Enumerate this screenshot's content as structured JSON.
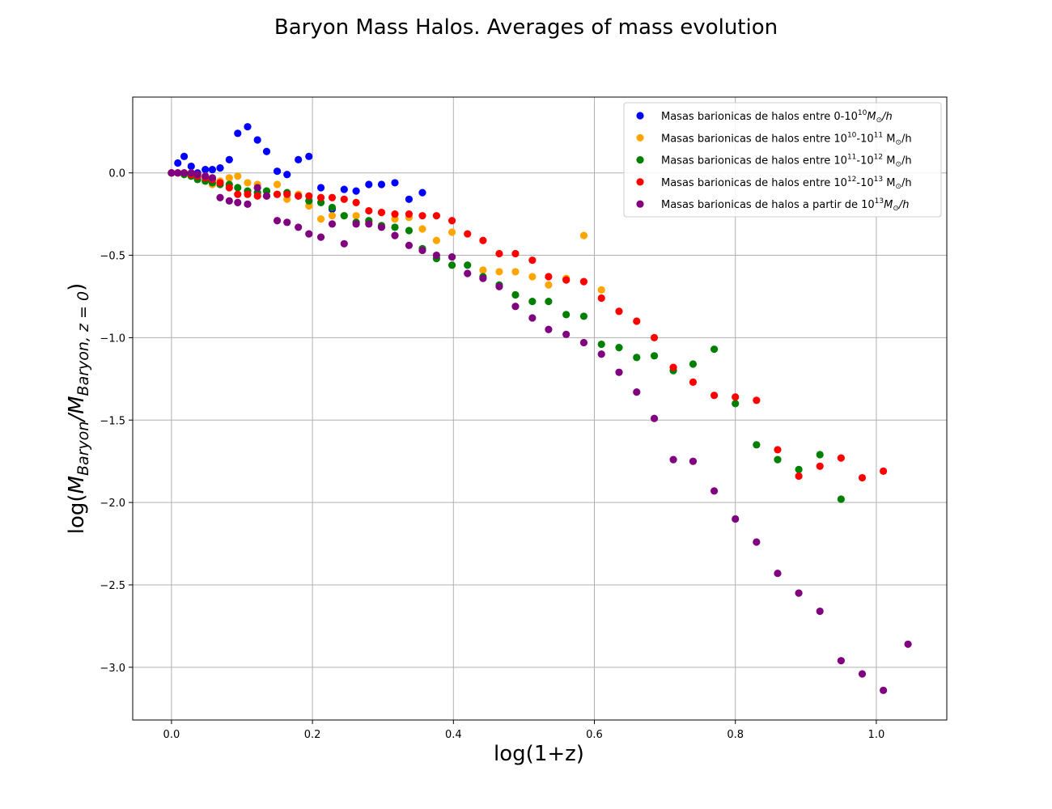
{
  "chart_data": {
    "type": "scatter",
    "title": "Baryon Mass Halos. Averages of mass evolution",
    "xlabel": "log(1+z)",
    "ylabel": {
      "main": "log(",
      "m1": "M",
      "sub1": "Baryon",
      "slash": "/",
      "m2": "M",
      "sub2": "Baryon, z = 0",
      "close": ")"
    },
    "xlim": [
      -0.055,
      1.1
    ],
    "ylim": [
      -3.32,
      0.46
    ],
    "xticks": [
      0.0,
      0.2,
      0.4,
      0.6,
      0.8,
      1.0
    ],
    "xtick_labels": [
      "0.0",
      "0.2",
      "0.4",
      "0.6",
      "0.8",
      "1.0"
    ],
    "yticks": [
      0.0,
      -0.5,
      -1.0,
      -1.5,
      -2.0,
      -2.5,
      -3.0
    ],
    "ytick_labels": [
      "0.0",
      "−0.5",
      "−1.0",
      "−1.5",
      "−2.0",
      "−2.5",
      "−3.0"
    ],
    "grid": true,
    "legend_position": "top-right",
    "series": [
      {
        "legend": {
          "pre": "Masas barionicas de halos entre 0-10",
          "sup": "10",
          "post": "M",
          "sub": "⊙",
          "tail": "/h"
        },
        "color": "#0000ff",
        "x": [
          0.0,
          0.009,
          0.018,
          0.028,
          0.037,
          0.048,
          0.058,
          0.069,
          0.082,
          0.094,
          0.108,
          0.122,
          0.135,
          0.15,
          0.164,
          0.18,
          0.195,
          0.212,
          0.228,
          0.245,
          0.262,
          0.28,
          0.298,
          0.317,
          0.337,
          0.356
        ],
        "y": [
          0.0,
          0.06,
          0.1,
          0.04,
          0.0,
          0.02,
          0.02,
          0.03,
          0.08,
          0.24,
          0.28,
          0.2,
          0.13,
          0.01,
          -0.01,
          0.08,
          0.1,
          -0.09,
          -0.22,
          -0.1,
          -0.11,
          -0.07,
          -0.07,
          -0.06,
          -0.16,
          -0.12
        ]
      },
      {
        "legend": {
          "pre": "Masas barionicas de halos entre  10",
          "sup": "10",
          "mid": "-10",
          "sup2": "11",
          "post": " M",
          "sub": "⊙",
          "tail": "/h"
        },
        "color": "#ffa500",
        "x": [
          0.0,
          0.009,
          0.018,
          0.028,
          0.037,
          0.048,
          0.058,
          0.069,
          0.082,
          0.094,
          0.108,
          0.122,
          0.135,
          0.15,
          0.164,
          0.18,
          0.195,
          0.212,
          0.228,
          0.245,
          0.262,
          0.28,
          0.298,
          0.317,
          0.337,
          0.356,
          0.376,
          0.398,
          0.442,
          0.465,
          0.488,
          0.512,
          0.535,
          0.56,
          0.585,
          0.61
        ],
        "y": [
          0.0,
          0.0,
          0.0,
          0.0,
          -0.01,
          -0.02,
          -0.07,
          -0.05,
          -0.03,
          -0.02,
          -0.06,
          -0.07,
          -0.11,
          -0.07,
          -0.16,
          -0.13,
          -0.2,
          -0.28,
          -0.26,
          -0.26,
          -0.26,
          -0.3,
          -0.24,
          -0.28,
          -0.27,
          -0.34,
          -0.41,
          -0.36,
          -0.59,
          -0.6,
          -0.6,
          -0.63,
          -0.68,
          -0.64,
          -0.38,
          -0.71
        ]
      },
      {
        "legend": {
          "pre": "Masas barionicas de halos entre  10",
          "sup": "11",
          "mid": "-10",
          "sup2": "12",
          "post": " M",
          "sub": "⊙",
          "tail": "/h"
        },
        "color": "#008000",
        "x": [
          0.0,
          0.009,
          0.018,
          0.028,
          0.037,
          0.048,
          0.058,
          0.069,
          0.082,
          0.094,
          0.108,
          0.122,
          0.135,
          0.15,
          0.164,
          0.18,
          0.195,
          0.212,
          0.228,
          0.245,
          0.262,
          0.28,
          0.298,
          0.317,
          0.337,
          0.356,
          0.376,
          0.398,
          0.42,
          0.442,
          0.465,
          0.488,
          0.512,
          0.535,
          0.56,
          0.585,
          0.61,
          0.635,
          0.66,
          0.685,
          0.712,
          0.74,
          0.77,
          0.8,
          0.83,
          0.86,
          0.89,
          0.92,
          0.95
        ],
        "y": [
          0.0,
          0.0,
          -0.01,
          -0.02,
          -0.04,
          -0.05,
          -0.06,
          -0.07,
          -0.07,
          -0.09,
          -0.11,
          -0.12,
          -0.11,
          -0.13,
          -0.12,
          -0.14,
          -0.17,
          -0.18,
          -0.21,
          -0.26,
          -0.3,
          -0.29,
          -0.32,
          -0.33,
          -0.35,
          -0.46,
          -0.52,
          -0.56,
          -0.56,
          -0.63,
          -0.68,
          -0.74,
          -0.78,
          -0.78,
          -0.86,
          -0.87,
          -1.04,
          -1.06,
          -1.12,
          -1.11,
          -1.2,
          -1.16,
          -1.07,
          -1.4,
          -1.65,
          -1.74,
          -1.8,
          -1.71,
          -1.98
        ]
      },
      {
        "legend": {
          "pre": "Masas barionicas de halos entre  10",
          "sup": "12",
          "mid": "-10",
          "sup2": "13",
          "post": " M",
          "sub": "⊙",
          "tail": "/h"
        },
        "color": "#ff0000",
        "x": [
          0.0,
          0.009,
          0.018,
          0.028,
          0.037,
          0.048,
          0.058,
          0.069,
          0.082,
          0.094,
          0.108,
          0.122,
          0.135,
          0.15,
          0.164,
          0.18,
          0.195,
          0.212,
          0.228,
          0.245,
          0.262,
          0.28,
          0.298,
          0.317,
          0.337,
          0.356,
          0.376,
          0.398,
          0.42,
          0.442,
          0.465,
          0.488,
          0.512,
          0.535,
          0.56,
          0.585,
          0.61,
          0.635,
          0.66,
          0.685,
          0.712,
          0.74,
          0.77,
          0.8,
          0.83,
          0.86,
          0.89,
          0.92,
          0.95,
          0.98,
          1.01
        ],
        "y": [
          0.0,
          0.0,
          0.0,
          -0.01,
          -0.02,
          -0.03,
          -0.04,
          -0.06,
          -0.09,
          -0.13,
          -0.13,
          -0.14,
          -0.14,
          -0.13,
          -0.13,
          -0.14,
          -0.14,
          -0.15,
          -0.15,
          -0.16,
          -0.18,
          -0.23,
          -0.24,
          -0.25,
          -0.25,
          -0.26,
          -0.26,
          -0.29,
          -0.37,
          -0.41,
          -0.49,
          -0.49,
          -0.53,
          -0.63,
          -0.65,
          -0.66,
          -0.76,
          -0.84,
          -0.9,
          -1.0,
          -1.18,
          -1.27,
          -1.35,
          -1.36,
          -1.38,
          -1.68,
          -1.84,
          -1.78,
          -1.73,
          -1.85,
          -1.81
        ]
      },
      {
        "legend": {
          "pre": "Masas barionicas de halos a partir de 10",
          "sup": "13",
          "post": "M",
          "sub": "⊙",
          "tail": "/h"
        },
        "color": "#800080",
        "x": [
          0.0,
          0.009,
          0.018,
          0.028,
          0.037,
          0.048,
          0.058,
          0.069,
          0.082,
          0.094,
          0.108,
          0.122,
          0.135,
          0.15,
          0.164,
          0.18,
          0.195,
          0.212,
          0.228,
          0.245,
          0.262,
          0.28,
          0.298,
          0.317,
          0.337,
          0.356,
          0.376,
          0.398,
          0.42,
          0.442,
          0.465,
          0.488,
          0.512,
          0.535,
          0.56,
          0.585,
          0.61,
          0.635,
          0.66,
          0.685,
          0.712,
          0.74,
          0.77,
          0.8,
          0.83,
          0.86,
          0.89,
          0.92,
          0.95,
          0.98,
          1.01,
          1.045
        ],
        "y": [
          0.0,
          0.0,
          0.0,
          0.0,
          -0.01,
          -0.02,
          -0.03,
          -0.15,
          -0.17,
          -0.18,
          -0.19,
          -0.09,
          -0.14,
          -0.29,
          -0.3,
          -0.33,
          -0.37,
          -0.39,
          -0.31,
          -0.43,
          -0.31,
          -0.31,
          -0.33,
          -0.38,
          -0.44,
          -0.47,
          -0.5,
          -0.51,
          -0.61,
          -0.64,
          -0.69,
          -0.81,
          -0.88,
          -0.95,
          -0.98,
          -1.03,
          -1.1,
          -1.21,
          -1.33,
          -1.49,
          -1.74,
          -1.75,
          -1.93,
          -2.1,
          -2.24,
          -2.43,
          -2.55,
          -2.66,
          -2.96,
          -3.04,
          -3.14,
          -2.86
        ]
      }
    ]
  }
}
